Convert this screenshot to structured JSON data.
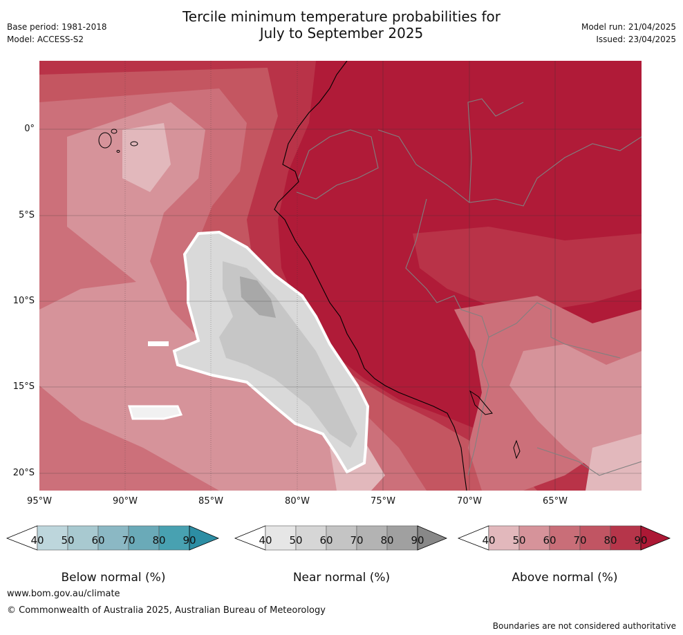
{
  "header": {
    "title_line1": "Tercile minimum temperature probabilities for",
    "title_line2": "July to September 2025",
    "base_period": "Base period: 1981-2018",
    "model": "Model: ACCESS-S2",
    "model_run": "Model run: 21/04/2025",
    "issued": "Issued: 23/04/2025"
  },
  "map": {
    "lat_labels": [
      "0°",
      "5°S",
      "10°S",
      "15°S",
      "20°S"
    ],
    "lon_labels": [
      "95°W",
      "90°W",
      "85°W",
      "80°W",
      "75°W",
      "70°W",
      "65°W"
    ],
    "colors": {
      "above_90": "#b01b38",
      "above_80": "#b93348",
      "above_70": "#c45661",
      "above_60": "#cc707a",
      "above_50": "#d6939a",
      "above_40": "#e2b8bc",
      "near_50": "#d9d9d9",
      "near_60": "#c6c6c6",
      "near_70": "#a8a8a8",
      "coast": "#000000",
      "border": "#808080",
      "grid": "#333333"
    }
  },
  "colorbars": {
    "below": {
      "label": "Below normal (%)",
      "ticks": [
        "40",
        "50",
        "60",
        "70",
        "80",
        "90"
      ],
      "colors": [
        "#bdd6dc",
        "#a8c9d0",
        "#8bb8c4",
        "#6aaab8",
        "#48a1b1",
        "#2d8ea4"
      ]
    },
    "near": {
      "label": "Near normal (%)",
      "ticks": [
        "40",
        "50",
        "60",
        "70",
        "80",
        "90"
      ],
      "colors": [
        "#e6e6e6",
        "#d6d6d6",
        "#c4c4c4",
        "#b3b3b3",
        "#a0a0a0",
        "#888888"
      ]
    },
    "above": {
      "label": "Above normal (%)",
      "ticks": [
        "40",
        "50",
        "60",
        "70",
        "80",
        "90"
      ],
      "colors": [
        "#e2b8bc",
        "#d6939a",
        "#c96e78",
        "#c15563",
        "#b6354a",
        "#ac1835"
      ]
    }
  },
  "footer": {
    "url": "www.bom.gov.au/climate",
    "copyright": "© Commonwealth of Australia 2025, Australian Bureau of Meteorology",
    "disclaimer": "Boundaries are not considered authoritative"
  }
}
